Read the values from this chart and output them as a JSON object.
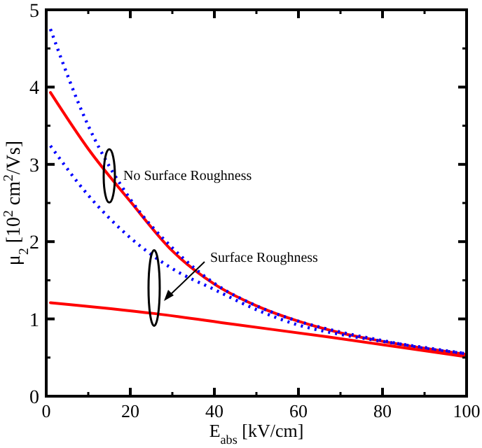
{
  "chart_data": {
    "type": "line",
    "xlabel": "E$_{abs}$ [kV/cm]",
    "ylabel": "μ$_{2}$ [10$^{2}$ cm$^{2}$/Vs]",
    "xlim": [
      0,
      100
    ],
    "ylim": [
      0,
      5
    ],
    "xticks": [
      0,
      20,
      40,
      60,
      80,
      100
    ],
    "yticks": [
      0,
      1,
      2,
      3,
      4,
      5
    ],
    "series": [
      {
        "color": "#ff0000",
        "line_style": "solid",
        "x": [
          1,
          10,
          20,
          30,
          40,
          50,
          60,
          70,
          80,
          90,
          100
        ],
        "values": [
          3.93,
          3.2,
          2.52,
          1.88,
          1.45,
          1.17,
          0.97,
          0.82,
          0.71,
          0.62,
          0.54
        ]
      },
      {
        "color": "#0000ff",
        "line_style": "dotted",
        "x": [
          1,
          10,
          20,
          30,
          40,
          50,
          60,
          70,
          80,
          90,
          100
        ],
        "values": [
          4.75,
          3.5,
          2.55,
          1.92,
          1.46,
          1.17,
          0.97,
          0.83,
          0.72,
          0.62,
          0.55
        ]
      },
      {
        "color": "#ff0000",
        "line_style": "solid",
        "x": [
          1,
          25.7,
          44.6,
          66.7,
          100
        ],
        "values": [
          1.21,
          1.07,
          0.93,
          0.77,
          0.51
        ]
      },
      {
        "color": "#0000ff",
        "line_style": "dotted",
        "x": [
          1,
          10,
          20,
          30,
          40,
          50,
          60,
          70,
          80,
          90,
          100
        ],
        "values": [
          3.24,
          2.6,
          2.05,
          1.65,
          1.38,
          1.12,
          0.92,
          0.8,
          0.71,
          0.63,
          0.55
        ]
      }
    ],
    "annotations": [
      "No Surface Roughness",
      "Surface Roughness"
    ]
  }
}
